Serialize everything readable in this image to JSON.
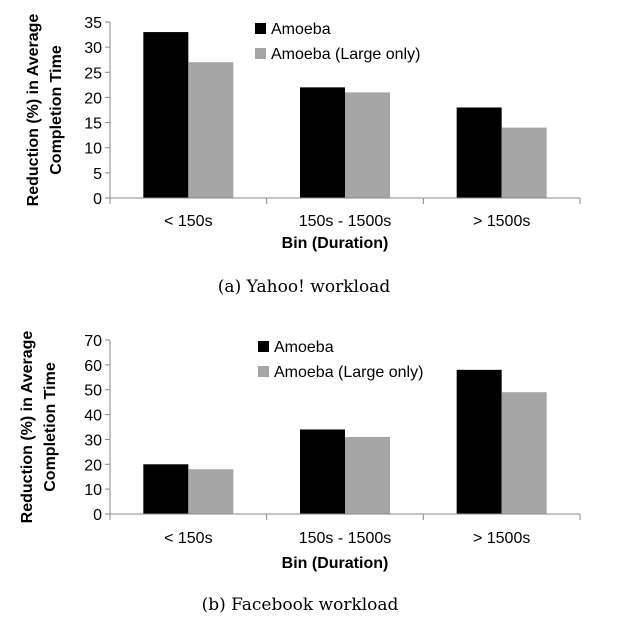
{
  "chart_data": [
    {
      "type": "bar",
      "caption": "(a) Yahoo! workload",
      "categories": [
        "< 150s",
        "150s - 1500s",
        "> 1500s"
      ],
      "series": [
        {
          "name": "Amoeba",
          "color": "#000000",
          "values": [
            33,
            22,
            18
          ]
        },
        {
          "name": "Amoeba (Large only)",
          "color": "#a6a6a6",
          "values": [
            27,
            21,
            14
          ]
        }
      ],
      "xlabel": "Bin (Duration)",
      "ylabel": [
        "Reduction (%) in Average",
        "Completion Time"
      ],
      "ylim": [
        0,
        35
      ],
      "yticks": [
        0,
        5,
        10,
        15,
        20,
        25,
        30,
        35
      ],
      "legend": "top-center",
      "grid": false
    },
    {
      "type": "bar",
      "caption": "(b) Facebook workload",
      "categories": [
        "< 150s",
        "150s - 1500s",
        "> 1500s"
      ],
      "series": [
        {
          "name": "Amoeba",
          "color": "#000000",
          "values": [
            20,
            34,
            58
          ]
        },
        {
          "name": "Amoeba (Large only)",
          "color": "#a6a6a6",
          "values": [
            18,
            31,
            49
          ]
        }
      ],
      "xlabel": "Bin (Duration)",
      "ylabel": [
        "Reduction (%) in Average",
        "Completion Time"
      ],
      "ylim": [
        0,
        70
      ],
      "yticks": [
        0,
        10,
        20,
        30,
        40,
        50,
        60,
        70
      ],
      "legend": "top-center",
      "grid": false
    }
  ]
}
